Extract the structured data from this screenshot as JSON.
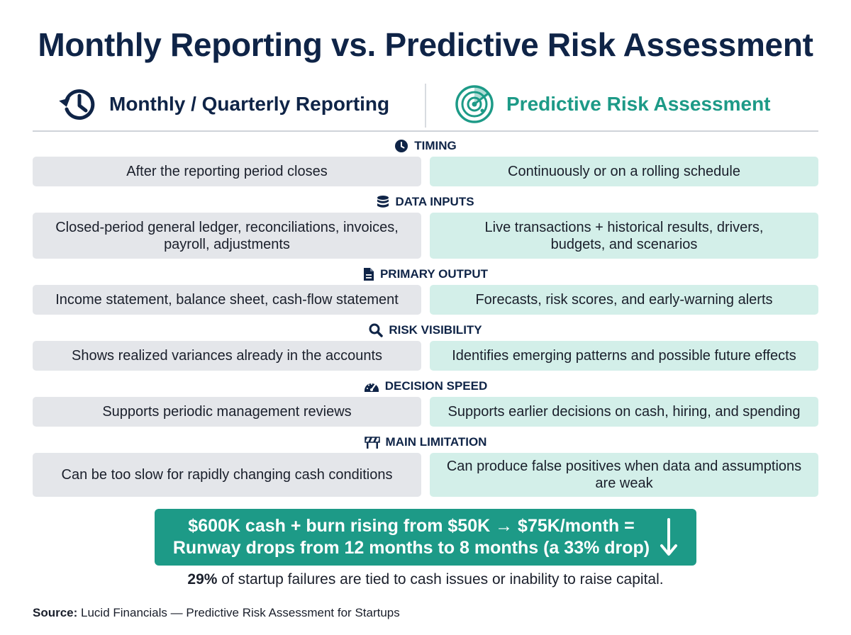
{
  "title": "Monthly Reporting vs. Predictive Risk Assessment",
  "columns": {
    "left": {
      "label": "Monthly / Quarterly Reporting",
      "icon": "history-icon"
    },
    "right": {
      "label": "Predictive Risk Assessment",
      "icon": "radar-icon"
    }
  },
  "sections": [
    {
      "label": "TIMING",
      "icon": "clock-icon",
      "left": "After the reporting period closes",
      "right": "Continuously or on a rolling schedule"
    },
    {
      "label": "DATA INPUTS",
      "icon": "database-icon",
      "left": "Closed-period general ledger, reconciliations, invoices, payroll, adjustments",
      "right": "Live transactions + historical results, drivers, budgets, and scenarios"
    },
    {
      "label": "PRIMARY OUTPUT",
      "icon": "document-icon",
      "left": "Income statement, balance sheet, cash-flow statement",
      "right": "Forecasts, risk scores, and early-warning alerts"
    },
    {
      "label": "RISK VISIBILITY",
      "icon": "search-icon",
      "left": "Shows realized variances already in the accounts",
      "right": "Identifies emerging patterns and possible future effects"
    },
    {
      "label": "DECISION SPEED",
      "icon": "speedometer-icon",
      "left": "Supports periodic management reviews",
      "right": "Supports earlier decisions on cash, hiring, and spending"
    },
    {
      "label": "MAIN LIMITATION",
      "icon": "barrier-icon",
      "left": "Can be too slow for rapidly changing cash conditions",
      "right": "Can produce false positives when data and assumptions are weak"
    }
  ],
  "banner": {
    "line1": "$600K cash + burn rising from $50K → $75K/month =",
    "line2": "Runway drops from 12 months to 8 months (a 33% drop)",
    "icon": "arrow-down-icon"
  },
  "note": {
    "highlight": "29%",
    "text": " of startup failures are tied to cash issues or inability to raise capital."
  },
  "source": {
    "label": "Source:",
    "text": " Lucid Financials — Predictive Risk Assessment for Startups"
  },
  "colors": {
    "navy": "#0f2447",
    "teal": "#1d9a87",
    "left_cell": "#e4e6ea",
    "right_cell": "#d3efe9"
  }
}
